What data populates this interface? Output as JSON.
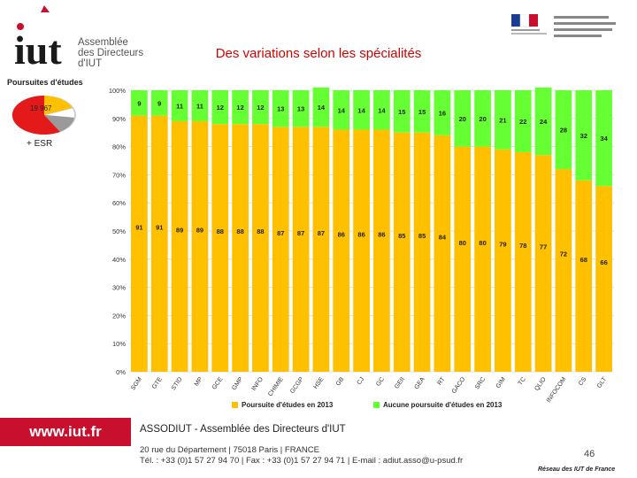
{
  "header": {
    "logo_word": "iut",
    "logo_lines": [
      "Assemblée",
      "des Directeurs",
      "d'IUT"
    ],
    "title": "Des variations selon les spécialités"
  },
  "inset": {
    "title": "Poursuites d'études",
    "value": "19 967",
    "caption": "+ ESR"
  },
  "chart_data": {
    "type": "bar",
    "stacked": true,
    "categories": [
      "SGM",
      "GTE",
      "STID",
      "MP",
      "GCE",
      "GMP",
      "INFO",
      "CHIMIE",
      "GCGP",
      "HSE",
      "GB",
      "CJ",
      "GC",
      "GEII",
      "GEA",
      "RT",
      "GACO",
      "SRC",
      "GIM",
      "TC",
      "QLIO",
      "INFOCOM",
      "CS",
      "GLT"
    ],
    "series": [
      {
        "name": "Poursuite d'études en 2013",
        "color": "#FFC000",
        "values": [
          91,
          91,
          89,
          89,
          88,
          88,
          88,
          87,
          87,
          87,
          86,
          86,
          86,
          85,
          85,
          84,
          80,
          80,
          79,
          78,
          77,
          72,
          68,
          66
        ]
      },
      {
        "name": "Aucune poursuite d'études en 2013",
        "color": "#66FF33",
        "values": [
          9,
          9,
          11,
          11,
          12,
          12,
          12,
          13,
          13,
          14,
          14,
          14,
          14,
          15,
          15,
          16,
          20,
          20,
          21,
          22,
          24,
          28,
          32,
          34
        ]
      }
    ],
    "y_ticks": [
      "0%",
      "10%",
      "20%",
      "30%",
      "40%",
      "50%",
      "60%",
      "70%",
      "80%",
      "90%",
      "100%"
    ],
    "ylim": [
      0,
      100
    ],
    "legend": "bottom"
  },
  "footer": {
    "url": "www.iut.fr",
    "org": "ASSODIUT - Assemblée des Directeurs d'IUT",
    "address_line1": "20 rue du Département | 75018 Paris | FRANCE",
    "address_line2": "Tél. : +33 (0)1 57 27 94 70 | Fax : +33 (0)1 57 27 94 71 | E-mail : adiut.asso@u-psud.fr",
    "page": "46",
    "network": "Réseau des IUT de France"
  }
}
